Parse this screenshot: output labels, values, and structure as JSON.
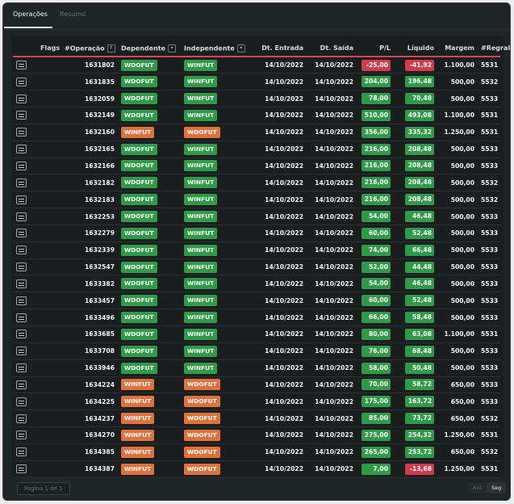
{
  "tabs": [
    {
      "label": "Operações",
      "active": true
    },
    {
      "label": "Resumo",
      "active": false
    }
  ],
  "columns": {
    "flags": "Flags",
    "operacao": "#Operação",
    "dependente": "Dependente",
    "independente": "Independente",
    "dt_entrada": "Dt. Entrada",
    "dt_saida": "Dt. Saída",
    "pl": "P/L",
    "liquido": "Líquido",
    "margem": "Margem",
    "regraid": "#RegraId"
  },
  "colors": {
    "positive": "#2f9a48",
    "negative": "#d23b4d",
    "wdofut_dependent": "#2f9a48",
    "winfut_dependent": "#e0713c",
    "header_accent": "#d84a57"
  },
  "rows": [
    {
      "op": "1631802",
      "dep": "WDOFUT",
      "ind": "WINFUT",
      "entrada": "14/10/2022",
      "saida": "14/10/2022",
      "pl": "-25,00",
      "liquido": "-41,92",
      "margem": "1.100,00",
      "regra": "5531"
    },
    {
      "op": "1631835",
      "dep": "WDOFUT",
      "ind": "WINFUT",
      "entrada": "14/10/2022",
      "saida": "14/10/2022",
      "pl": "204,00",
      "liquido": "196,48",
      "margem": "500,00",
      "regra": "5532"
    },
    {
      "op": "1632059",
      "dep": "WDOFUT",
      "ind": "WINFUT",
      "entrada": "14/10/2022",
      "saida": "14/10/2022",
      "pl": "78,00",
      "liquido": "70,48",
      "margem": "500,00",
      "regra": "5533"
    },
    {
      "op": "1632149",
      "dep": "WDOFUT",
      "ind": "WINFUT",
      "entrada": "14/10/2022",
      "saida": "14/10/2022",
      "pl": "510,00",
      "liquido": "493,08",
      "margem": "1.100,00",
      "regra": "5531"
    },
    {
      "op": "1632160",
      "dep": "WINFUT",
      "ind": "WDOFUT",
      "entrada": "14/10/2022",
      "saida": "14/10/2022",
      "pl": "356,00",
      "liquido": "335,32",
      "margem": "1.250,00",
      "regra": "5531"
    },
    {
      "op": "1632165",
      "dep": "WDOFUT",
      "ind": "WINFUT",
      "entrada": "14/10/2022",
      "saida": "14/10/2022",
      "pl": "216,00",
      "liquido": "208,48",
      "margem": "500,00",
      "regra": "5533"
    },
    {
      "op": "1632166",
      "dep": "WDOFUT",
      "ind": "WINFUT",
      "entrada": "14/10/2022",
      "saida": "14/10/2022",
      "pl": "216,00",
      "liquido": "208,48",
      "margem": "500,00",
      "regra": "5533"
    },
    {
      "op": "1632182",
      "dep": "WDOFUT",
      "ind": "WINFUT",
      "entrada": "14/10/2022",
      "saida": "14/10/2022",
      "pl": "216,00",
      "liquido": "208,48",
      "margem": "500,00",
      "regra": "5532"
    },
    {
      "op": "1632183",
      "dep": "WDOFUT",
      "ind": "WINFUT",
      "entrada": "14/10/2022",
      "saida": "14/10/2022",
      "pl": "216,00",
      "liquido": "208,48",
      "margem": "500,00",
      "regra": "5532"
    },
    {
      "op": "1632253",
      "dep": "WDOFUT",
      "ind": "WINFUT",
      "entrada": "14/10/2022",
      "saida": "14/10/2022",
      "pl": "54,00",
      "liquido": "46,48",
      "margem": "500,00",
      "regra": "5533"
    },
    {
      "op": "1632279",
      "dep": "WDOFUT",
      "ind": "WINFUT",
      "entrada": "14/10/2022",
      "saida": "14/10/2022",
      "pl": "60,00",
      "liquido": "52,48",
      "margem": "500,00",
      "regra": "5533"
    },
    {
      "op": "1632339",
      "dep": "WDOFUT",
      "ind": "WINFUT",
      "entrada": "14/10/2022",
      "saida": "14/10/2022",
      "pl": "74,00",
      "liquido": "66,48",
      "margem": "500,00",
      "regra": "5533"
    },
    {
      "op": "1632547",
      "dep": "WDOFUT",
      "ind": "WINFUT",
      "entrada": "14/10/2022",
      "saida": "14/10/2022",
      "pl": "52,00",
      "liquido": "44,48",
      "margem": "500,00",
      "regra": "5533"
    },
    {
      "op": "1633382",
      "dep": "WDOFUT",
      "ind": "WINFUT",
      "entrada": "14/10/2022",
      "saida": "14/10/2022",
      "pl": "54,00",
      "liquido": "46,48",
      "margem": "500,00",
      "regra": "5533"
    },
    {
      "op": "1633457",
      "dep": "WDOFUT",
      "ind": "WINFUT",
      "entrada": "14/10/2022",
      "saida": "14/10/2022",
      "pl": "60,00",
      "liquido": "52,48",
      "margem": "500,00",
      "regra": "5533"
    },
    {
      "op": "1633496",
      "dep": "WDOFUT",
      "ind": "WINFUT",
      "entrada": "14/10/2022",
      "saida": "14/10/2022",
      "pl": "66,00",
      "liquido": "58,48",
      "margem": "500,00",
      "regra": "5533"
    },
    {
      "op": "1633685",
      "dep": "WDOFUT",
      "ind": "WINFUT",
      "entrada": "14/10/2022",
      "saida": "14/10/2022",
      "pl": "80,00",
      "liquido": "63,08",
      "margem": "1.100,00",
      "regra": "5531"
    },
    {
      "op": "1633708",
      "dep": "WDOFUT",
      "ind": "WINFUT",
      "entrada": "14/10/2022",
      "saida": "14/10/2022",
      "pl": "76,00",
      "liquido": "68,48",
      "margem": "500,00",
      "regra": "5533"
    },
    {
      "op": "1633946",
      "dep": "WDOFUT",
      "ind": "WINFUT",
      "entrada": "14/10/2022",
      "saida": "14/10/2022",
      "pl": "58,00",
      "liquido": "50,48",
      "margem": "500,00",
      "regra": "5533"
    },
    {
      "op": "1634224",
      "dep": "WINFUT",
      "ind": "WDOFUT",
      "entrada": "14/10/2022",
      "saida": "14/10/2022",
      "pl": "70,00",
      "liquido": "58,72",
      "margem": "650,00",
      "regra": "5533"
    },
    {
      "op": "1634225",
      "dep": "WINFUT",
      "ind": "WDOFUT",
      "entrada": "14/10/2022",
      "saida": "14/10/2022",
      "pl": "175,00",
      "liquido": "163,72",
      "margem": "650,00",
      "regra": "5533"
    },
    {
      "op": "1634237",
      "dep": "WINFUT",
      "ind": "WDOFUT",
      "entrada": "14/10/2022",
      "saida": "14/10/2022",
      "pl": "85,00",
      "liquido": "73,72",
      "margem": "650,00",
      "regra": "5532"
    },
    {
      "op": "1634270",
      "dep": "WINFUT",
      "ind": "WDOFUT",
      "entrada": "14/10/2022",
      "saida": "14/10/2022",
      "pl": "275,00",
      "liquido": "254,32",
      "margem": "1.250,00",
      "regra": "5531"
    },
    {
      "op": "1634385",
      "dep": "WINFUT",
      "ind": "WDOFUT",
      "entrada": "14/10/2022",
      "saida": "14/10/2022",
      "pl": "265,00",
      "liquido": "253,72",
      "margem": "650,00",
      "regra": "5532"
    },
    {
      "op": "1634387",
      "dep": "WINFUT",
      "ind": "WDOFUT",
      "entrada": "14/10/2022",
      "saida": "14/10/2022",
      "pl": "7,00",
      "liquido": "-13,68",
      "margem": "1.250,00",
      "regra": "5531"
    }
  ],
  "footer": {
    "page_label": "Página 1 de 1",
    "prev_label": "Ant",
    "next_label": "Seg"
  }
}
